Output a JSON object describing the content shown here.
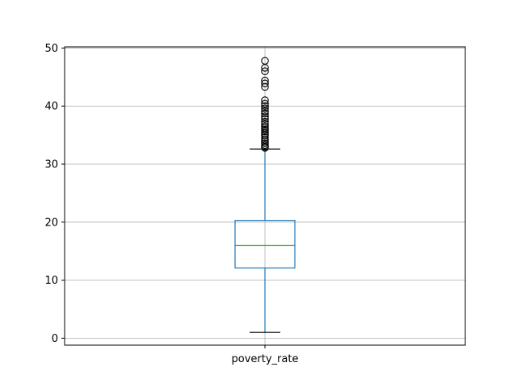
{
  "chart_data": {
    "type": "box",
    "title": "",
    "xlabel": "",
    "ylabel": "",
    "ylim": [
      -1.2,
      50.2
    ],
    "yticks": [
      0,
      10,
      20,
      30,
      40,
      50
    ],
    "grid": true,
    "categories": [
      "poverty_rate"
    ],
    "boxes": [
      {
        "name": "poverty_rate",
        "whisker_low": 1.0,
        "q1": 12.1,
        "median": 16.0,
        "q3": 20.3,
        "whisker_high": 32.6,
        "outliers": [
          32.8,
          33.0,
          33.3,
          33.6,
          33.9,
          34.2,
          34.6,
          35.0,
          35.3,
          35.6,
          35.9,
          36.2,
          36.5,
          36.9,
          37.3,
          37.8,
          38.2,
          38.7,
          39.1,
          39.6,
          40.0,
          40.4,
          41.0,
          43.3,
          43.9,
          44.4,
          46.0,
          46.6,
          47.8
        ]
      }
    ],
    "colors": {
      "box": "#1f77b4",
      "median": "#2ca02c",
      "caps": "#000000",
      "outlier": "#000000",
      "grid": "#b0b0b0"
    }
  }
}
